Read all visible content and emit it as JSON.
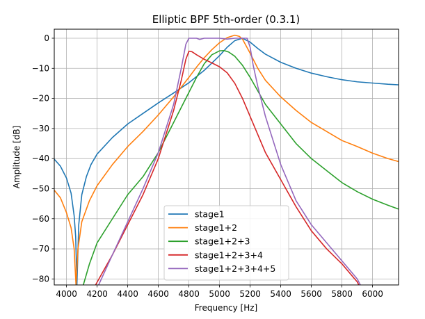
{
  "chart_data": {
    "type": "line",
    "title": "Elliptic BPF 5th-order (0.3.1)",
    "xlabel": "Frequency [Hz]",
    "ylabel": "Amplitude [dB]",
    "xlim": [
      3920,
      6170
    ],
    "ylim": [
      -82,
      3
    ],
    "x_ticks": [
      4000,
      4200,
      4400,
      4600,
      4800,
      5000,
      5200,
      5400,
      5600,
      5800,
      6000
    ],
    "y_ticks": [
      0,
      -10,
      -20,
      -30,
      -40,
      -50,
      -60,
      -70,
      -80
    ],
    "x_tick_labels": [
      "4000",
      "4200",
      "4400",
      "4600",
      "4800",
      "5000",
      "5200",
      "5400",
      "5600",
      "5800",
      "6000"
    ],
    "y_tick_labels": [
      "0",
      "−10",
      "−20",
      "−30",
      "−40",
      "−50",
      "−60",
      "−70",
      "−80"
    ],
    "grid": true,
    "legend_position": "bottom-center",
    "series": [
      {
        "name": "stage1",
        "color": "#1f77b4",
        "points": [
          [
            3920,
            -40.2
          ],
          [
            3960,
            -42.5
          ],
          [
            4000,
            -46.5
          ],
          [
            4030,
            -51.5
          ],
          [
            4050,
            -59
          ],
          [
            4060,
            -66
          ],
          [
            4068,
            -82
          ],
          [
            4080,
            -62
          ],
          [
            4100,
            -52
          ],
          [
            4130,
            -46
          ],
          [
            4160,
            -42
          ],
          [
            4200,
            -38.5
          ],
          [
            4300,
            -33
          ],
          [
            4400,
            -28.5
          ],
          [
            4500,
            -25
          ],
          [
            4600,
            -21.5
          ],
          [
            4700,
            -18.2
          ],
          [
            4800,
            -14.8
          ],
          [
            4900,
            -10.7
          ],
          [
            5000,
            -5.8
          ],
          [
            5050,
            -3
          ],
          [
            5100,
            -0.8
          ],
          [
            5150,
            0
          ],
          [
            5200,
            -1.3
          ],
          [
            5250,
            -3.4
          ],
          [
            5300,
            -5.3
          ],
          [
            5400,
            -8
          ],
          [
            5500,
            -10
          ],
          [
            5600,
            -11.6
          ],
          [
            5700,
            -12.8
          ],
          [
            5800,
            -13.8
          ],
          [
            5900,
            -14.5
          ],
          [
            6000,
            -14.9
          ],
          [
            6100,
            -15.3
          ],
          [
            6170,
            -15.5
          ]
        ]
      },
      {
        "name": "stage1+2",
        "color": "#ff7f0e",
        "points": [
          [
            3920,
            -50.5
          ],
          [
            3960,
            -53
          ],
          [
            4000,
            -58
          ],
          [
            4030,
            -63
          ],
          [
            4050,
            -70
          ],
          [
            4062,
            -82
          ],
          [
            4075,
            -70
          ],
          [
            4100,
            -61
          ],
          [
            4150,
            -54
          ],
          [
            4200,
            -49
          ],
          [
            4300,
            -42
          ],
          [
            4400,
            -36
          ],
          [
            4500,
            -31
          ],
          [
            4600,
            -25.5
          ],
          [
            4700,
            -19.5
          ],
          [
            4800,
            -13
          ],
          [
            4850,
            -9.6
          ],
          [
            4900,
            -6.5
          ],
          [
            4950,
            -3.8
          ],
          [
            5000,
            -1.5
          ],
          [
            5050,
            0.2
          ],
          [
            5100,
            1
          ],
          [
            5130,
            0.6
          ],
          [
            5150,
            -0.3
          ],
          [
            5200,
            -5
          ],
          [
            5250,
            -10
          ],
          [
            5300,
            -14
          ],
          [
            5400,
            -19.5
          ],
          [
            5500,
            -24
          ],
          [
            5600,
            -28
          ],
          [
            5700,
            -31
          ],
          [
            5800,
            -34
          ],
          [
            5900,
            -36
          ],
          [
            6000,
            -38.2
          ],
          [
            6100,
            -40
          ],
          [
            6170,
            -41
          ]
        ]
      },
      {
        "name": "stage1+2+3",
        "color": "#2ca02c",
        "points": [
          [
            4110,
            -82
          ],
          [
            4150,
            -75
          ],
          [
            4200,
            -68
          ],
          [
            4300,
            -60
          ],
          [
            4400,
            -52
          ],
          [
            4500,
            -46
          ],
          [
            4600,
            -38
          ],
          [
            4700,
            -28
          ],
          [
            4800,
            -18
          ],
          [
            4850,
            -13
          ],
          [
            4900,
            -8.5
          ],
          [
            4950,
            -5.5
          ],
          [
            5000,
            -4.2
          ],
          [
            5030,
            -4.1
          ],
          [
            5060,
            -4.6
          ],
          [
            5100,
            -6
          ],
          [
            5150,
            -9
          ],
          [
            5200,
            -13
          ],
          [
            5250,
            -17.5
          ],
          [
            5300,
            -22
          ],
          [
            5400,
            -28.5
          ],
          [
            5500,
            -35
          ],
          [
            5600,
            -40
          ],
          [
            5700,
            -44
          ],
          [
            5800,
            -48
          ],
          [
            5900,
            -51
          ],
          [
            6000,
            -53.5
          ],
          [
            6100,
            -55.5
          ],
          [
            6170,
            -56.8
          ]
        ]
      },
      {
        "name": "stage1+2+3+4",
        "color": "#d62728",
        "points": [
          [
            4190,
            -82
          ],
          [
            4300,
            -72
          ],
          [
            4400,
            -62
          ],
          [
            4500,
            -52
          ],
          [
            4600,
            -40
          ],
          [
            4700,
            -24
          ],
          [
            4750,
            -14
          ],
          [
            4780,
            -7
          ],
          [
            4800,
            -4.3
          ],
          [
            4820,
            -4.5
          ],
          [
            4850,
            -5.5
          ],
          [
            4900,
            -7
          ],
          [
            4950,
            -8.2
          ],
          [
            5000,
            -9.5
          ],
          [
            5050,
            -11.5
          ],
          [
            5100,
            -15
          ],
          [
            5150,
            -20
          ],
          [
            5200,
            -26
          ],
          [
            5250,
            -32
          ],
          [
            5300,
            -38
          ],
          [
            5400,
            -47
          ],
          [
            5500,
            -56
          ],
          [
            5600,
            -64
          ],
          [
            5700,
            -70
          ],
          [
            5800,
            -75
          ],
          [
            5900,
            -81
          ],
          [
            5910,
            -82
          ]
        ]
      },
      {
        "name": "stage1+2+3+4+5",
        "color": "#9467bd",
        "points": [
          [
            4210,
            -82
          ],
          [
            4300,
            -72
          ],
          [
            4400,
            -61
          ],
          [
            4500,
            -50
          ],
          [
            4600,
            -38
          ],
          [
            4700,
            -22
          ],
          [
            4750,
            -10
          ],
          [
            4780,
            -2
          ],
          [
            4800,
            0
          ],
          [
            4850,
            0
          ],
          [
            4870,
            -0.4
          ],
          [
            4900,
            0
          ],
          [
            5000,
            0
          ],
          [
            5050,
            -0.3
          ],
          [
            5100,
            0
          ],
          [
            5150,
            0
          ],
          [
            5180,
            0
          ],
          [
            5200,
            -3
          ],
          [
            5220,
            -9
          ],
          [
            5250,
            -16
          ],
          [
            5300,
            -26
          ],
          [
            5400,
            -42
          ],
          [
            5500,
            -54
          ],
          [
            5600,
            -62
          ],
          [
            5700,
            -68
          ],
          [
            5800,
            -74
          ],
          [
            5900,
            -80
          ],
          [
            5920,
            -82
          ]
        ]
      }
    ]
  }
}
